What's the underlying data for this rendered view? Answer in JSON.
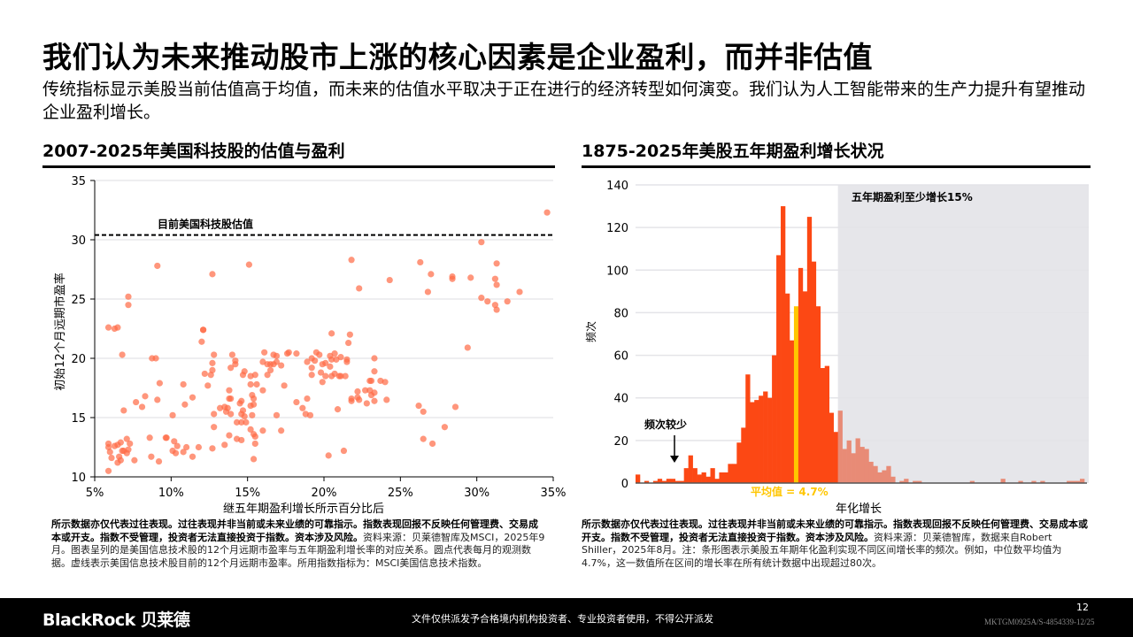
{
  "title": "我们认为未来推动股市上涨的核心因素是企业盈利，而并非估值",
  "subtitle": "传统指标显示美股当前估值高于均值，而未来的估值水平取决于正在进行的经济转型如何演变。我们认为人工智能带来的生产力提升有望推动企业盈利增长。",
  "left": {
    "heading": "2007-2025年美国科技股的估值与盈利",
    "note_bold": "所示数据亦仅代表过往表现。过往表现并非当前或未来业绩的可靠指示。指数表现回报不反映任何管理费、交易成本或开支。指数不受管理，投资者无法直接投资于指数。资本涉及风险。",
    "note": "资料来源：贝莱德智库及MSCI，2025年9月。图表呈列的是美国信息技术股的12个月远期市盈率与五年期盈利增长率的对应关系。圆点代表每月的观测数据。虚线表示美国信息技术股目前的12个月远期市盈率。所用指数指标为：MSCI美国信息技术指数。"
  },
  "right": {
    "heading": "1875-2025年美股五年期盈利增长状况",
    "note_bold": "所示数据亦仅代表过往表现。过往表现并非当前或未来业绩的可靠指示。指数表现回报不反映任何管理费、交易成本或开支。指数不受管理，投资者无法直接投资于指数。资本涉及风险。",
    "note": "资料来源：贝莱德智库，数据来自Robert Shiller，2025年8月。注：条形图表示美股五年期年化盈利实现不同区间增长率的频次。例如，中位数平均值为4.7%，这一数值所在区间的增长率在所有统计数据中出现超过80次。"
  },
  "footer": {
    "logo": "BlackRock 贝莱德",
    "disclaimer": "文件仅供派发予合格境内机构投资者、专业投资者使用，不得公开派发",
    "page": "12",
    "code": "MKTGM0925A/S-4854339-12/25"
  },
  "chart_data": [
    {
      "type": "scatter",
      "xlabel": "继五年期盈利增长所示百分比后",
      "ylabel": "初始12个月远期市盈率",
      "xlim": [
        5,
        35
      ],
      "ylim": [
        10,
        35
      ],
      "xticks": [
        "5%",
        "10%",
        "15%",
        "20%",
        "25%",
        "30%",
        "35%"
      ],
      "yticks": [
        "10",
        "15",
        "20",
        "25",
        "30",
        "35"
      ],
      "reference_line": {
        "y": 30.4,
        "label": "目前美国科技股估值"
      },
      "grid": "horizontal",
      "color": "#ff6a45",
      "points": [
        [
          5.9,
          22.6
        ],
        [
          6.3,
          22.5
        ],
        [
          6.5,
          22.6
        ],
        [
          6.8,
          20.3
        ],
        [
          7.2,
          24.5
        ],
        [
          7.2,
          25.2
        ],
        [
          9.1,
          27.8
        ],
        [
          12.7,
          27.1
        ],
        [
          15.1,
          27.9
        ],
        [
          21.8,
          28.3
        ],
        [
          22.3,
          25.9
        ],
        [
          24.3,
          26.6
        ],
        [
          26.3,
          28.1
        ],
        [
          27.0,
          27.1
        ],
        [
          26.8,
          25.6
        ],
        [
          28.4,
          26.9
        ],
        [
          28.4,
          26.7
        ],
        [
          29.6,
          26.8
        ],
        [
          30.3,
          29.8
        ],
        [
          31.3,
          28.0
        ],
        [
          31.2,
          26.7
        ],
        [
          31.3,
          26.2
        ],
        [
          30.3,
          25.1
        ],
        [
          30.7,
          24.8
        ],
        [
          31.2,
          24.5
        ],
        [
          31.3,
          24.1
        ],
        [
          32.0,
          24.8
        ],
        [
          32.8,
          25.6
        ],
        [
          34.6,
          32.3
        ],
        [
          29.4,
          20.9
        ],
        [
          12.1,
          22.4
        ],
        [
          12.1,
          22.4
        ],
        [
          12.0,
          21.4
        ],
        [
          12.8,
          20.3
        ],
        [
          12.7,
          19.6
        ],
        [
          12.7,
          19.0
        ],
        [
          12.2,
          18.7
        ],
        [
          12.6,
          18.6
        ],
        [
          12.4,
          17.7
        ],
        [
          8.75,
          20.0
        ],
        [
          9.0,
          20.0
        ],
        [
          9.25,
          17.9
        ],
        [
          9.1,
          16.5
        ],
        [
          8.3,
          16.8
        ],
        [
          7.7,
          16.3
        ],
        [
          8.1,
          15.9
        ],
        [
          6.9,
          15.6
        ],
        [
          10.1,
          15.2
        ],
        [
          10.8,
          17.8
        ],
        [
          10.9,
          16.1
        ],
        [
          11.4,
          16.7
        ],
        [
          14.0,
          20.3
        ],
        [
          14.2,
          19.8
        ],
        [
          14.2,
          19.5
        ],
        [
          13.9,
          19.2
        ],
        [
          14.8,
          18.9
        ],
        [
          14.7,
          18.6
        ],
        [
          15.2,
          18.5
        ],
        [
          15.5,
          18.6
        ],
        [
          15.2,
          17.8
        ],
        [
          15.6,
          17.8
        ],
        [
          13.8,
          17.3
        ],
        [
          13.8,
          16.6
        ],
        [
          13.9,
          16.6
        ],
        [
          14.6,
          16.4
        ],
        [
          14.5,
          16.2
        ],
        [
          13.5,
          15.9
        ],
        [
          13.6,
          15.5
        ],
        [
          13.2,
          15.8
        ],
        [
          13.7,
          15.8
        ],
        [
          13.9,
          15.3
        ],
        [
          12.8,
          15.3
        ],
        [
          12.8,
          14.2
        ],
        [
          14.7,
          15.6
        ],
        [
          14.6,
          15.3
        ],
        [
          14.8,
          15.1
        ],
        [
          14.9,
          14.6
        ],
        [
          14.3,
          14.6
        ],
        [
          14.6,
          14.6
        ],
        [
          15.3,
          16.9
        ],
        [
          15.4,
          16.6
        ],
        [
          15.2,
          16.0
        ],
        [
          15.4,
          16.1
        ],
        [
          15.3,
          15.2
        ],
        [
          15.2,
          14.0
        ],
        [
          15.4,
          13.6
        ],
        [
          15.5,
          13.4
        ],
        [
          15.5,
          12.8
        ],
        [
          15.4,
          11.5
        ],
        [
          16.0,
          13.9
        ],
        [
          13.8,
          13.5
        ],
        [
          14.3,
          13.2
        ],
        [
          14.6,
          13.1
        ],
        [
          13.5,
          12.7
        ],
        [
          12.7,
          12.4
        ],
        [
          11.8,
          12.5
        ],
        [
          16.0,
          17.3
        ],
        [
          16.3,
          18.6
        ],
        [
          16.5,
          19.0
        ],
        [
          16.0,
          19.7
        ],
        [
          16.1,
          20.5
        ],
        [
          16.3,
          19.5
        ],
        [
          16.5,
          19.5
        ],
        [
          16.7,
          20.3
        ],
        [
          16.9,
          20.2
        ],
        [
          16.9,
          19.7
        ],
        [
          16.7,
          19.5
        ],
        [
          17.2,
          19.4
        ],
        [
          17.6,
          20.4
        ],
        [
          17.7,
          20.5
        ],
        [
          18.2,
          20.4
        ],
        [
          17.4,
          17.7
        ],
        [
          18.2,
          16.3
        ],
        [
          18.6,
          15.8
        ],
        [
          18.8,
          15.3
        ],
        [
          19.1,
          15.2
        ],
        [
          18.9,
          16.6
        ],
        [
          16.9,
          15.2
        ],
        [
          17.2,
          13.9
        ],
        [
          18.9,
          19.7
        ],
        [
          19.2,
          20.0
        ],
        [
          19.4,
          19.8
        ],
        [
          19.2,
          19.2
        ],
        [
          19.2,
          18.6
        ],
        [
          19.5,
          20.5
        ],
        [
          19.7,
          20.3
        ],
        [
          19.9,
          19.5
        ],
        [
          20.1,
          19.6
        ],
        [
          19.8,
          18.8
        ],
        [
          19.9,
          18.0
        ],
        [
          20.1,
          18.5
        ],
        [
          20.4,
          19.3
        ],
        [
          20.4,
          20.2
        ],
        [
          20.7,
          20.4
        ],
        [
          20.5,
          19.9
        ],
        [
          20.8,
          19.9
        ],
        [
          21.1,
          20.1
        ],
        [
          21.5,
          19.9
        ],
        [
          21.5,
          19.7
        ],
        [
          20.5,
          22.1
        ],
        [
          21.7,
          22.0
        ],
        [
          21.6,
          21.3
        ],
        [
          20.5,
          18.5
        ],
        [
          20.7,
          18.7
        ],
        [
          21.0,
          18.5
        ],
        [
          21.1,
          18.5
        ],
        [
          21.4,
          18.5
        ],
        [
          20.9,
          15.7
        ],
        [
          20.3,
          11.8
        ],
        [
          21.3,
          12.2
        ],
        [
          21.8,
          16.4
        ],
        [
          21.8,
          16.6
        ],
        [
          22.2,
          17.2
        ],
        [
          22.2,
          16.7
        ],
        [
          22.3,
          16.5
        ],
        [
          22.7,
          17.3
        ],
        [
          23.0,
          17.3
        ],
        [
          23.1,
          16.9
        ],
        [
          23.3,
          17.1
        ],
        [
          22.8,
          16.2
        ],
        [
          23.3,
          16.4
        ],
        [
          24.1,
          16.5
        ],
        [
          23.0,
          18.1
        ],
        [
          23.1,
          18.1
        ],
        [
          23.7,
          18.1
        ],
        [
          24.0,
          18.0
        ],
        [
          23.3,
          18.9
        ],
        [
          23.3,
          20.0
        ],
        [
          26.2,
          16.0
        ],
        [
          26.5,
          15.5
        ],
        [
          26.5,
          13.2
        ],
        [
          27.1,
          12.8
        ],
        [
          27.9,
          14.2
        ],
        [
          28.6,
          15.9
        ],
        [
          5.9,
          12.8
        ],
        [
          5.9,
          12.5
        ],
        [
          6.0,
          12.1
        ],
        [
          6.1,
          11.6
        ],
        [
          5.9,
          10.5
        ],
        [
          6.3,
          12.6
        ],
        [
          6.5,
          12.7
        ],
        [
          6.7,
          12.9
        ],
        [
          6.8,
          12.2
        ],
        [
          6.6,
          11.7
        ],
        [
          6.5,
          11.2
        ],
        [
          6.7,
          11.4
        ],
        [
          6.9,
          12.2
        ],
        [
          7.1,
          13.2
        ],
        [
          7.3,
          12.8
        ],
        [
          7.2,
          12.3
        ],
        [
          7.1,
          12.0
        ],
        [
          7.6,
          11.4
        ],
        [
          8.6,
          13.3
        ],
        [
          8.7,
          11.7
        ],
        [
          9.2,
          11.3
        ],
        [
          9.65,
          13.3
        ],
        [
          9.7,
          13.3
        ],
        [
          10.2,
          13.0
        ],
        [
          10.1,
          12.2
        ],
        [
          10.3,
          12.0
        ],
        [
          10.4,
          12.6
        ],
        [
          10.8,
          12.1
        ],
        [
          11.0,
          12.5
        ],
        [
          11.4,
          11.7
        ]
      ]
    },
    {
      "type": "bar",
      "xlabel": "年化增长",
      "ylabel": "频次",
      "ylim": [
        0,
        140
      ],
      "yticks": [
        "0",
        "20",
        "40",
        "60",
        "80",
        "100",
        "120",
        "140"
      ],
      "grid": "horizontal",
      "colors": {
        "main": "#fc4814",
        "mean": "#ffc600",
        "above_15": "#e88b76",
        "shade": "#e6e6ea"
      },
      "mean_bin": 36,
      "shade_from_bin": 46,
      "annotations": {
        "shade": "五年期盈利至少增长15%",
        "low": "频次较少",
        "mean": "平均值 = 4.7%"
      },
      "values": [
        4,
        0,
        1,
        0,
        1,
        2,
        1,
        2,
        2,
        1,
        1,
        7,
        13,
        7,
        4,
        5,
        3,
        7,
        2,
        5,
        5,
        9,
        9,
        19,
        26,
        51,
        38,
        39,
        41,
        43,
        40,
        60,
        107,
        130,
        89,
        67,
        83,
        101,
        90,
        125,
        104,
        83,
        54,
        55,
        33,
        24,
        34,
        16,
        20,
        14,
        21,
        17,
        16,
        10,
        8,
        5,
        6,
        8,
        3,
        0,
        1,
        2,
        0,
        1,
        1,
        0,
        0,
        0,
        0,
        0,
        0,
        0,
        0,
        0,
        0,
        0,
        1,
        0,
        0,
        0,
        0,
        0,
        0,
        2,
        0,
        0,
        0,
        1,
        0,
        0,
        1,
        0,
        1,
        0,
        0,
        0,
        0,
        0,
        1,
        1,
        1,
        2
      ]
    }
  ]
}
